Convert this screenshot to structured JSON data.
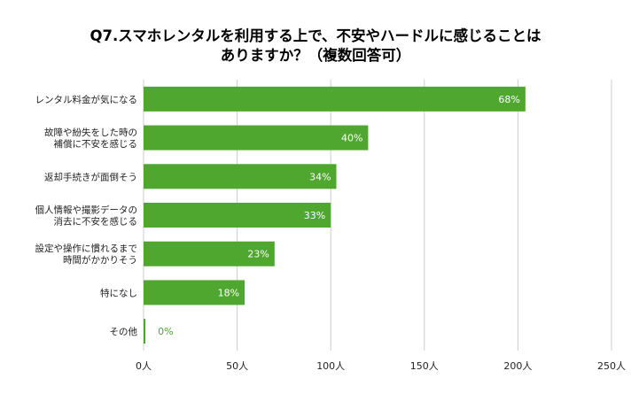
{
  "chart_data": {
    "type": "bar",
    "orientation": "horizontal",
    "title": [
      "Q7.スマホレンタルを利用する上で、不安やハードルに感じることは",
      "ありますか？（複数回答可）"
    ],
    "categories": [
      [
        "レンタル料金が気になる"
      ],
      [
        "故障や紛失をした時の",
        "補償に不安を感じる"
      ],
      [
        "返却手続きが面倒そう"
      ],
      [
        "個人情報や撮影データの",
        "消去に不安を感じる"
      ],
      [
        "設定や操作に慣れるまで",
        "時間がかかりそう"
      ],
      [
        "特になし"
      ],
      [
        "その他"
      ]
    ],
    "counts": [
      204,
      120,
      103,
      100,
      70,
      54,
      1
    ],
    "data_labels": [
      "68%",
      "40%",
      "34%",
      "33%",
      "23%",
      "18%",
      "0%"
    ],
    "x_ticks": [
      {
        "value": 0,
        "label": "0人"
      },
      {
        "value": 50,
        "label": "50人"
      },
      {
        "value": 100,
        "label": "100人"
      },
      {
        "value": 150,
        "label": "150人"
      },
      {
        "value": 200,
        "label": "200人"
      },
      {
        "value": 250,
        "label": "250人"
      }
    ],
    "xlim": [
      0,
      250
    ],
    "grid": "vertical",
    "legend": "none",
    "colors": {
      "bar": "#4fa72f",
      "label_inside": "#ffffff",
      "label_outside": "#4fa72f",
      "grid": "#cccccc",
      "text": "#222222",
      "title": "#000000"
    }
  }
}
